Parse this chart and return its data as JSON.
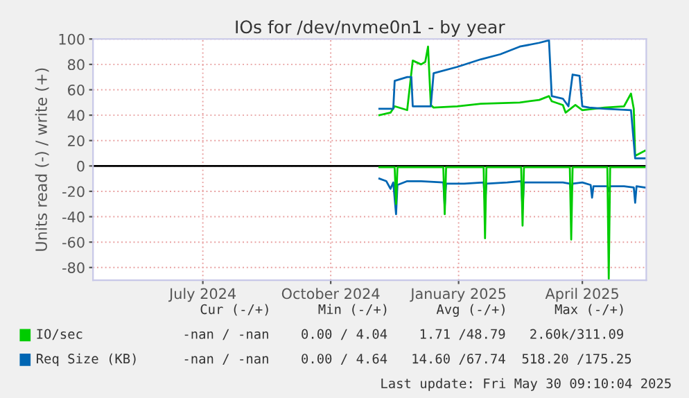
{
  "chart_data": {
    "type": "line",
    "title": "IOs for /dev/nvme0n1 - by year",
    "ylabel": "Units read (-) / write (+)",
    "xlim": [
      "2024-04-28",
      "2025-05-31"
    ],
    "ylim": [
      -90,
      100
    ],
    "xticks": [
      {
        "value": "2024-07-16",
        "label": "July 2024"
      },
      {
        "value": "2024-10-16",
        "label": "October 2024"
      },
      {
        "value": "2025-01-16",
        "label": "January 2025"
      },
      {
        "value": "2025-04-15",
        "label": "April 2025"
      }
    ],
    "yticks": [
      -80,
      -60,
      -40,
      -20,
      0,
      20,
      40,
      60,
      80,
      100
    ],
    "grid": true,
    "legend": "bottom",
    "ref_lines": [
      {
        "axis": "y",
        "value": 0,
        "color": "#000000"
      }
    ],
    "series": [
      {
        "color": "#0066b3",
        "x": [
          "2024-11-20",
          "2024-11-25",
          "2024-11-28",
          "2024-11-30",
          "2024-12-02",
          "2024-12-03",
          "2024-12-10",
          "2024-12-20",
          "2025-01-05",
          "2025-01-06",
          "2025-01-07",
          "2025-01-20",
          "2025-02-03",
          "2025-02-04",
          "2025-02-05",
          "2025-02-20",
          "2025-03-02",
          "2025-03-03",
          "2025-03-04",
          "2025-03-20",
          "2025-04-01",
          "2025-04-06",
          "2025-04-07",
          "2025-04-08",
          "2025-04-15",
          "2025-04-21",
          "2025-04-22",
          "2025-04-23",
          "2025-05-03",
          "2025-05-04",
          "2025-05-05",
          "2025-05-15",
          "2025-05-22",
          "2025-05-23",
          "2025-05-24",
          "2025-05-30"
        ],
        "values": [
          -10,
          -12,
          -18,
          -13,
          -38,
          -15,
          -12,
          -12,
          -13,
          -32,
          -14,
          -14,
          -13,
          -30,
          -14,
          -13,
          -12,
          -34,
          -13,
          -13,
          -13,
          -14,
          -22,
          -14,
          -13,
          -15,
          -25,
          -16,
          -16,
          -20,
          -16,
          -16,
          -17,
          -29,
          -16,
          -17
        ]
      },
      {
        "color": "#00cc00",
        "x": [
          "2024-11-20",
          "2024-12-01",
          "2024-12-02",
          "2024-12-03",
          "2025-01-05",
          "2025-01-06",
          "2025-01-07",
          "2025-02-03",
          "2025-02-04",
          "2025-02-05",
          "2025-03-02",
          "2025-03-03",
          "2025-03-04",
          "2025-04-06",
          "2025-04-07",
          "2025-04-08",
          "2025-05-03",
          "2025-05-04",
          "2025-05-05",
          "2025-05-30"
        ],
        "values": [
          -1,
          -1,
          -30,
          -1,
          -1,
          -38,
          -1,
          -1,
          -57,
          -1,
          -1,
          -47,
          -1,
          -1,
          -58,
          -1,
          -1,
          -89,
          -1,
          -1
        ]
      },
      {
        "name": "IO/sec",
        "color": "#00cc00",
        "x": [
          "2024-11-20",
          "2024-11-28",
          "2024-12-01",
          "2024-12-10",
          "2024-12-14",
          "2024-12-20",
          "2024-12-23",
          "2024-12-25",
          "2024-12-27",
          "2024-12-29",
          "2025-01-15",
          "2025-02-01",
          "2025-03-01",
          "2025-03-15",
          "2025-03-22",
          "2025-03-24",
          "2025-04-01",
          "2025-04-03",
          "2025-04-10",
          "2025-04-15",
          "2025-05-01",
          "2025-05-15",
          "2025-05-20",
          "2025-05-22",
          "2025-05-23",
          "2025-05-30"
        ],
        "values": [
          40,
          42,
          47,
          44,
          83,
          80,
          82,
          94,
          48,
          46,
          47,
          49,
          50,
          52,
          55,
          51,
          48,
          42,
          48,
          44,
          46,
          47,
          57,
          45,
          8,
          12
        ]
      },
      {
        "name": "Req Size (KB)",
        "color": "#0066b3",
        "x": [
          "2024-11-20",
          "2024-11-30",
          "2024-12-01",
          "2024-12-10",
          "2024-12-13",
          "2024-12-14",
          "2024-12-27",
          "2024-12-29",
          "2025-01-15",
          "2025-02-01",
          "2025-02-15",
          "2025-03-01",
          "2025-03-15",
          "2025-03-22",
          "2025-03-24",
          "2025-04-01",
          "2025-04-05",
          "2025-04-08",
          "2025-04-13",
          "2025-04-15",
          "2025-04-20",
          "2025-05-01",
          "2025-05-20",
          "2025-05-23",
          "2025-05-30"
        ],
        "values": [
          45,
          45,
          67,
          70,
          70,
          47,
          47,
          73,
          78,
          84,
          88,
          94,
          97,
          99,
          55,
          53,
          47,
          72,
          71,
          47,
          46,
          45,
          44,
          6,
          6
        ]
      }
    ],
    "annotations": [
      "Cur (-/+)      Min (-/+)      Avg (-/+)      Max (-/+)",
      "-nan / -nan    0.00 / 4.04    1.71 /48.79   2.60k/311.09",
      "-nan / -nan    0.00 / 4.64   14.60 /67.74  518.20 /175.25",
      "Last update: Fri May 30 09:10:04 2025"
    ]
  }
}
